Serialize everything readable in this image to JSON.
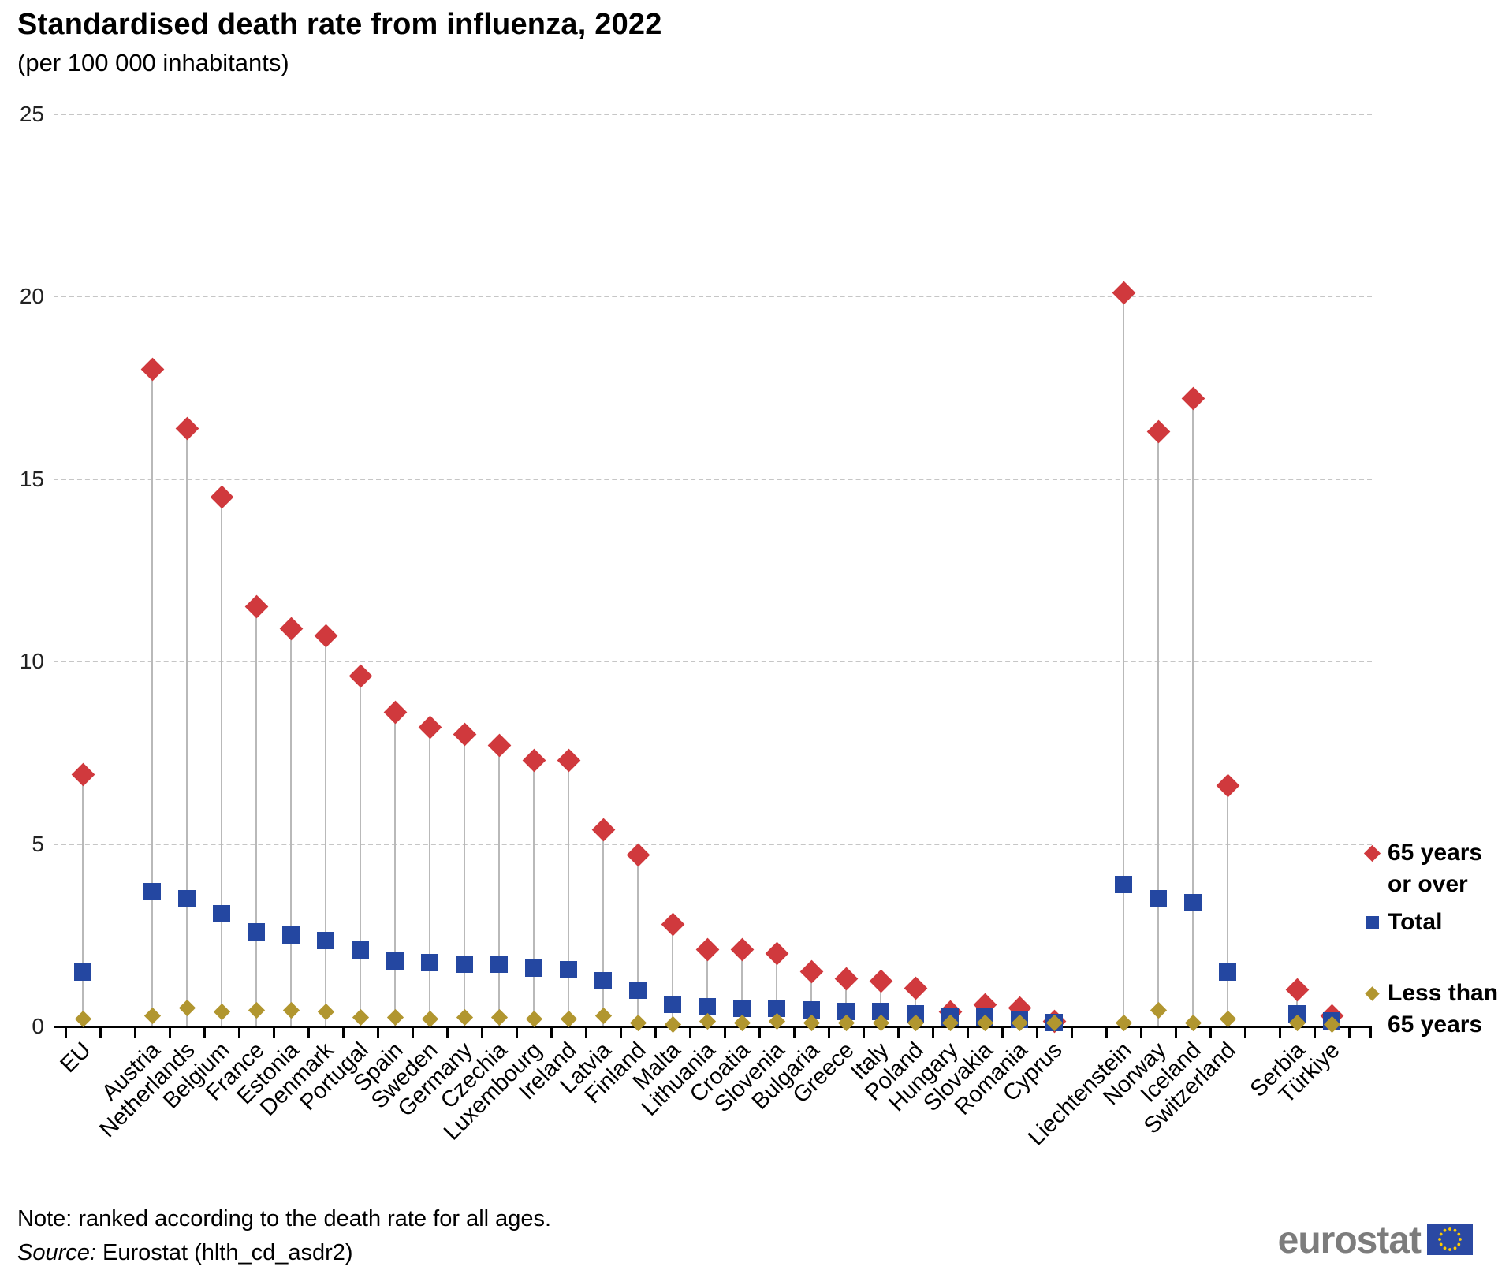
{
  "header": {
    "title": "Standardised death rate from influenza, 2022",
    "subtitle": "(per 100 000 inhabitants)"
  },
  "legend": {
    "items": [
      {
        "id": "age_65_or_over",
        "marker": "diamond",
        "color": "#d0393d",
        "lines": [
          "65 years",
          "or over"
        ]
      },
      {
        "id": "total",
        "marker": "square",
        "color": "#2447a1",
        "lines": [
          "Total"
        ]
      },
      {
        "id": "less_than_65",
        "marker": "diamond",
        "color": "#b1962f",
        "lines": [
          "Less than",
          "65 years"
        ]
      }
    ]
  },
  "footer": {
    "note": "Note: ranked according to the death rate for all ages.",
    "source_label": "Source:",
    "source_rest": " Eurostat (hlth_cd_asdr2)",
    "logo_text": "eurostat"
  },
  "chart_data": {
    "type": "scatter",
    "title": "Standardised death rate from influenza, 2022",
    "subtitle": "(per 100 000 inhabitants)",
    "xlabel": "",
    "ylabel": "per 100 000 inhabitants",
    "ylim": [
      0,
      25
    ],
    "yticks": [
      0,
      5,
      10,
      15,
      20,
      25
    ],
    "grid": "horizontal-dashed",
    "legend_position": "right",
    "note": "ranked according to the death rate for all ages",
    "series_names": [
      "65 years or over",
      "Total",
      "Less than 65 years"
    ],
    "colors": {
      "age_65_or_over": "#d0393d",
      "total": "#2447a1",
      "less_than_65": "#b1962f"
    },
    "rows": [
      {
        "country": "EU",
        "slot": 0,
        "age_65_or_over": 6.9,
        "total": 1.5,
        "less_than_65": 0.2
      },
      {
        "country": "Austria",
        "slot": 2,
        "age_65_or_over": 18.0,
        "total": 3.7,
        "less_than_65": 0.3
      },
      {
        "country": "Netherlands",
        "slot": 3,
        "age_65_or_over": 16.4,
        "total": 3.5,
        "less_than_65": 0.5
      },
      {
        "country": "Belgium",
        "slot": 4,
        "age_65_or_over": 14.5,
        "total": 3.1,
        "less_than_65": 0.4
      },
      {
        "country": "France",
        "slot": 5,
        "age_65_or_over": 11.5,
        "total": 2.6,
        "less_than_65": 0.45
      },
      {
        "country": "Estonia",
        "slot": 6,
        "age_65_or_over": 10.9,
        "total": 2.5,
        "less_than_65": 0.45
      },
      {
        "country": "Denmark",
        "slot": 7,
        "age_65_or_over": 10.7,
        "total": 2.35,
        "less_than_65": 0.4
      },
      {
        "country": "Portugal",
        "slot": 8,
        "age_65_or_over": 9.6,
        "total": 2.1,
        "less_than_65": 0.25
      },
      {
        "country": "Spain",
        "slot": 9,
        "age_65_or_over": 8.6,
        "total": 1.8,
        "less_than_65": 0.25
      },
      {
        "country": "Sweden",
        "slot": 10,
        "age_65_or_over": 8.2,
        "total": 1.75,
        "less_than_65": 0.2
      },
      {
        "country": "Germany",
        "slot": 11,
        "age_65_or_over": 8.0,
        "total": 1.7,
        "less_than_65": 0.25
      },
      {
        "country": "Czechia",
        "slot": 12,
        "age_65_or_over": 7.7,
        "total": 1.7,
        "less_than_65": 0.25
      },
      {
        "country": "Luxembourg",
        "slot": 13,
        "age_65_or_over": 7.3,
        "total": 1.6,
        "less_than_65": 0.2
      },
      {
        "country": "Ireland",
        "slot": 14,
        "age_65_or_over": 7.3,
        "total": 1.55,
        "less_than_65": 0.2
      },
      {
        "country": "Latvia",
        "slot": 15,
        "age_65_or_over": 5.4,
        "total": 1.25,
        "less_than_65": 0.3
      },
      {
        "country": "Finland",
        "slot": 16,
        "age_65_or_over": 4.7,
        "total": 1.0,
        "less_than_65": 0.1
      },
      {
        "country": "Malta",
        "slot": 17,
        "age_65_or_over": 2.8,
        "total": 0.6,
        "less_than_65": 0.05
      },
      {
        "country": "Lithuania",
        "slot": 18,
        "age_65_or_over": 2.1,
        "total": 0.55,
        "less_than_65": 0.15
      },
      {
        "country": "Croatia",
        "slot": 19,
        "age_65_or_over": 2.1,
        "total": 0.5,
        "less_than_65": 0.1
      },
      {
        "country": "Slovenia",
        "slot": 20,
        "age_65_or_over": 2.0,
        "total": 0.5,
        "less_than_65": 0.15
      },
      {
        "country": "Bulgaria",
        "slot": 21,
        "age_65_or_over": 1.5,
        "total": 0.45,
        "less_than_65": 0.1
      },
      {
        "country": "Greece",
        "slot": 22,
        "age_65_or_over": 1.3,
        "total": 0.4,
        "less_than_65": 0.1
      },
      {
        "country": "Italy",
        "slot": 23,
        "age_65_or_over": 1.25,
        "total": 0.4,
        "less_than_65": 0.1
      },
      {
        "country": "Poland",
        "slot": 24,
        "age_65_or_over": 1.05,
        "total": 0.35,
        "less_than_65": 0.1
      },
      {
        "country": "Hungary",
        "slot": 25,
        "age_65_or_over": 0.4,
        "total": 0.25,
        "less_than_65": 0.1
      },
      {
        "country": "Slovakia",
        "slot": 26,
        "age_65_or_over": 0.6,
        "total": 0.25,
        "less_than_65": 0.1
      },
      {
        "country": "Romania",
        "slot": 27,
        "age_65_or_over": 0.5,
        "total": 0.2,
        "less_than_65": 0.1
      },
      {
        "country": "Cyprus",
        "slot": 28,
        "age_65_or_over": 0.15,
        "total": 0.1,
        "less_than_65": 0.1
      },
      {
        "country": "Liechtenstein",
        "slot": 30,
        "age_65_or_over": 20.1,
        "total": 3.9,
        "less_than_65": 0.1
      },
      {
        "country": "Norway",
        "slot": 31,
        "age_65_or_over": 16.3,
        "total": 3.5,
        "less_than_65": 0.45
      },
      {
        "country": "Iceland",
        "slot": 32,
        "age_65_or_over": 17.2,
        "total": 3.4,
        "less_than_65": 0.1
      },
      {
        "country": "Switzerland",
        "slot": 33,
        "age_65_or_over": 6.6,
        "total": 1.5,
        "less_than_65": 0.2
      },
      {
        "country": "Serbia",
        "slot": 35,
        "age_65_or_over": 1.0,
        "total": 0.35,
        "less_than_65": 0.1
      },
      {
        "country": "Türkiye",
        "slot": 36,
        "age_65_or_over": 0.3,
        "total": 0.15,
        "less_than_65": 0.05
      }
    ]
  }
}
